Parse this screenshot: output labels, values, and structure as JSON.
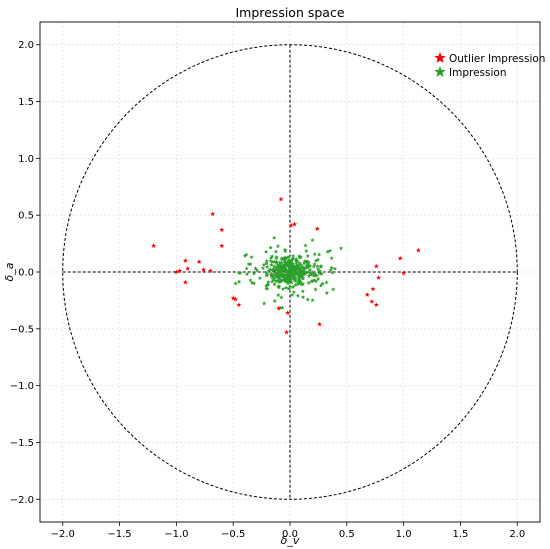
{
  "chart_data": {
    "type": "scatter",
    "title": "Impression space",
    "xlabel": "δ_v",
    "ylabel": "δ_a",
    "xlim": [
      -2.2,
      2.2
    ],
    "ylim": [
      -2.2,
      2.2
    ],
    "xticks": [
      -2.0,
      -1.5,
      -1.0,
      -0.5,
      0.0,
      0.5,
      1.0,
      1.5,
      2.0
    ],
    "yticks": [
      -2.0,
      -1.5,
      -1.0,
      -0.5,
      0.0,
      0.5,
      1.0,
      1.5,
      2.0
    ],
    "xtick_labels": [
      "−2.0",
      "−1.5",
      "−1.0",
      "−0.5",
      "0.0",
      "0.5",
      "1.0",
      "1.5",
      "2.0"
    ],
    "ytick_labels": [
      "−2.0",
      "−1.5",
      "−1.0",
      "−0.5",
      "0.0",
      "0.5",
      "1.0",
      "1.5",
      "2.0"
    ],
    "grid": true,
    "legend_position": "top-right",
    "circle_radius": 2.0,
    "series": [
      {
        "name": "Outlier Impression",
        "color": "#ff0000",
        "marker": "star",
        "points": [
          [
            -1.2,
            0.23
          ],
          [
            -1.0,
            0.0
          ],
          [
            -0.97,
            0.01
          ],
          [
            -0.92,
            0.1
          ],
          [
            -0.9,
            0.03
          ],
          [
            -0.92,
            -0.09
          ],
          [
            -0.8,
            0.09
          ],
          [
            -0.76,
            0.02
          ],
          [
            -0.7,
            0.01
          ],
          [
            -0.68,
            0.51
          ],
          [
            -0.6,
            0.37
          ],
          [
            -0.6,
            0.23
          ],
          [
            -0.5,
            -0.23
          ],
          [
            -0.48,
            -0.24
          ],
          [
            -0.45,
            -0.29
          ],
          [
            -0.1,
            -0.32
          ],
          [
            -0.08,
            0.64
          ],
          [
            -0.03,
            -0.53
          ],
          [
            -0.02,
            -0.36
          ],
          [
            0.01,
            0.41
          ],
          [
            0.04,
            0.42
          ],
          [
            0.24,
            0.38
          ],
          [
            0.26,
            -0.46
          ],
          [
            0.68,
            -0.2
          ],
          [
            0.72,
            -0.26
          ],
          [
            0.73,
            -0.15
          ],
          [
            0.76,
            -0.29
          ],
          [
            0.76,
            0.05
          ],
          [
            0.78,
            -0.05
          ],
          [
            0.97,
            0.12
          ],
          [
            1.0,
            -0.01
          ],
          [
            1.13,
            0.19
          ]
        ]
      },
      {
        "name": "Impression",
        "color": "#2ca02c",
        "marker": "star"
      }
    ]
  }
}
